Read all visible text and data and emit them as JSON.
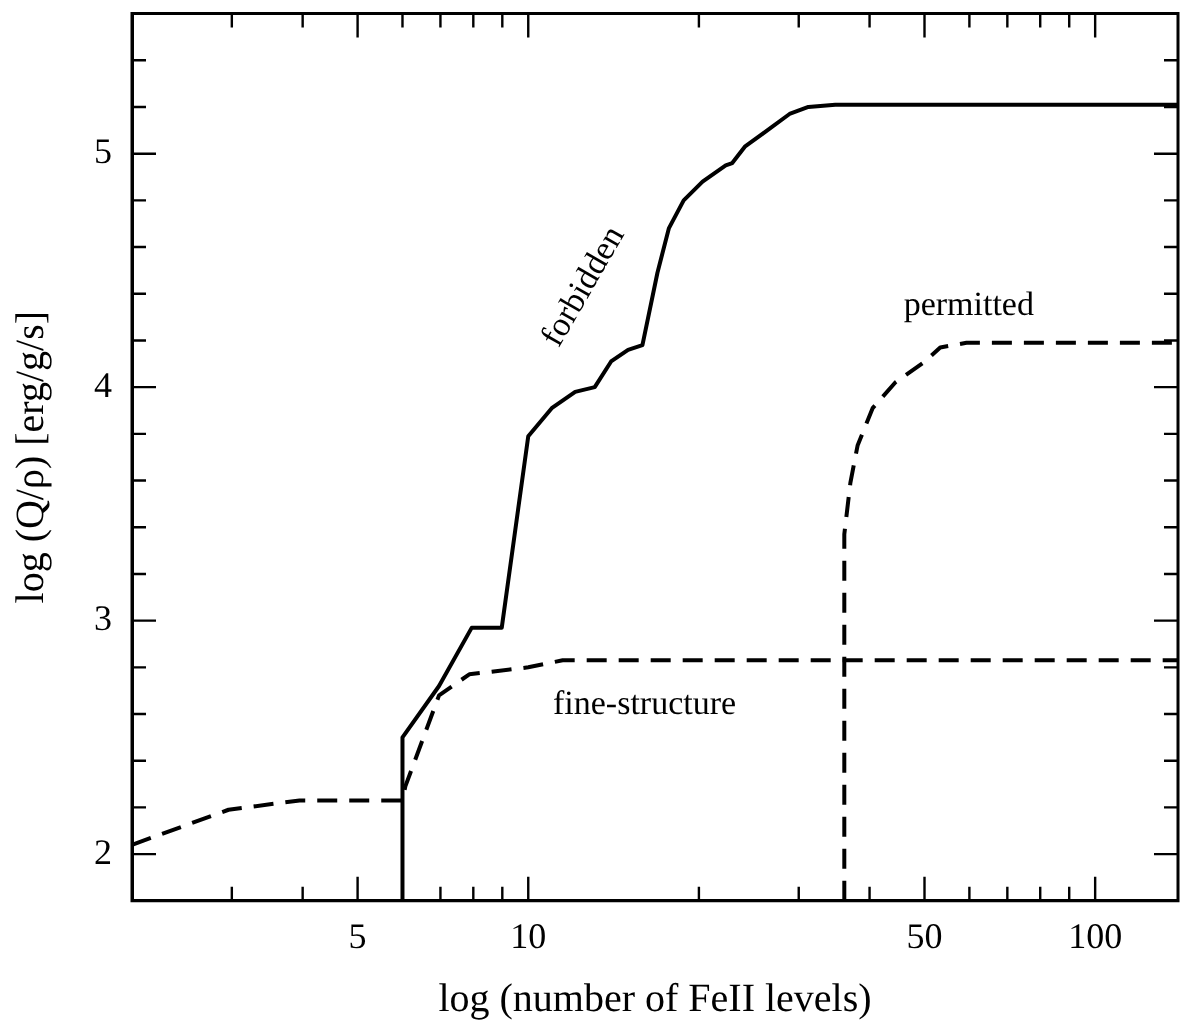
{
  "chart_data": {
    "type": "line",
    "xlabel": "log (number of FeII levels)",
    "ylabel": "log (Q/ρ) [erg/g/s]",
    "log": "x",
    "xlim": [
      2,
      140
    ],
    "ylim": [
      1.8,
      5.6
    ],
    "xticks": [
      {
        "value": 3,
        "label": null
      },
      {
        "value": 4,
        "label": null
      },
      5,
      {
        "value": 6,
        "label": null
      },
      {
        "value": 7,
        "label": null
      },
      {
        "value": 8,
        "label": null
      },
      {
        "value": 9,
        "label": null
      },
      10,
      {
        "value": 20,
        "label": null
      },
      {
        "value": 30,
        "label": null
      },
      {
        "value": 40,
        "label": null
      },
      50,
      {
        "value": 60,
        "label": null
      },
      {
        "value": 70,
        "label": null
      },
      {
        "value": 80,
        "label": null
      },
      {
        "value": 90,
        "label": null
      },
      100
    ],
    "yticks": [
      {
        "value": 1.8,
        "label": null
      },
      2,
      {
        "value": 2.2,
        "label": null
      },
      {
        "value": 2.4,
        "label": null
      },
      {
        "value": 2.6,
        "label": null
      },
      {
        "value": 2.8,
        "label": null
      },
      3,
      {
        "value": 3.2,
        "label": null
      },
      {
        "value": 3.4,
        "label": null
      },
      {
        "value": 3.6,
        "label": null
      },
      {
        "value": 3.8,
        "label": null
      },
      4,
      {
        "value": 4.2,
        "label": null
      },
      {
        "value": 4.4,
        "label": null
      },
      {
        "value": 4.6,
        "label": null
      },
      {
        "value": 4.8,
        "label": null
      },
      5,
      {
        "value": 5.2,
        "label": null
      },
      {
        "value": 5.4,
        "label": null
      }
    ],
    "grid": false,
    "legend": false,
    "marker": "none",
    "series": [
      {
        "name": "forbidden",
        "color": "#000000",
        "line_style": "solid",
        "x": [
          6,
          6,
          6.96,
          7.95,
          8.98,
          10,
          11,
          12.1,
          13.1,
          14,
          15,
          15.9,
          16.9,
          17.7,
          18.8,
          20.3,
          22.3,
          22.9,
          24.1,
          26.4,
          28.9,
          31.2,
          34.8,
          140
        ],
        "values": [
          1.8,
          2.5,
          2.72,
          2.97,
          2.97,
          3.79,
          3.91,
          3.98,
          4.0,
          4.11,
          4.16,
          4.18,
          4.49,
          4.68,
          4.8,
          4.88,
          4.95,
          4.96,
          5.03,
          5.1,
          5.17,
          5.2,
          5.21,
          5.21
        ]
      },
      {
        "name": "fine-structure",
        "color": "#000000",
        "line_style": "dashed",
        "x": [
          2,
          2.96,
          3.95,
          6,
          6.07,
          6.96,
          7.87,
          10,
          11.5,
          140
        ],
        "values": [
          2.04,
          2.19,
          2.23,
          2.23,
          2.29,
          2.68,
          2.77,
          2.8,
          2.83,
          2.83
        ]
      },
      {
        "name": "permitted",
        "color": "#000000",
        "line_style": "dashed",
        "x": [
          36.1,
          36.1,
          37,
          38.1,
          40.5,
          44.4,
          50.1,
          53.3,
          59.3,
          140
        ],
        "values": [
          1.8,
          3.37,
          3.59,
          3.75,
          3.91,
          4.02,
          4.11,
          4.17,
          4.19,
          4.19
        ]
      }
    ]
  }
}
